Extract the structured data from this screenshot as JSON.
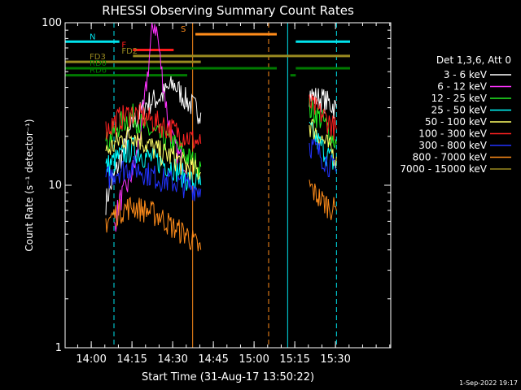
{
  "chart_data": {
    "type": "line",
    "title": "RHESSI Observing Summary Count Rates",
    "xlabel": "Start Time (31-Aug-17 13:50:22)",
    "ylabel": "Count Rate (s⁻¹ detector⁻¹)",
    "yscale": "log",
    "ylim": [
      1,
      100
    ],
    "xlim_min_after_start": [
      0,
      120
    ],
    "x_ticks": [
      "14:00",
      "14:15",
      "14:30",
      "14:45",
      "15:00",
      "15:15",
      "15:30"
    ],
    "y_ticks": [
      "1",
      "10",
      "100"
    ],
    "legend_title": "Det 1,3,6, Att 0",
    "legend_position": "right",
    "timestamp": "1-Sep-2022 19:17",
    "colors": {
      "background": "#000000",
      "axes": "#ffffff",
      "night_boundary": "#00e5ee",
      "saa_boundary": "#ff8c1a"
    },
    "series": [
      {
        "name": "3 - 6 keV",
        "color": "#ffffff",
        "segments": [
          {
            "t": [
              15,
              20,
              25,
              30,
              35,
              40,
              45,
              50
            ],
            "y": [
              8,
              14,
              24,
              32,
              35,
              42,
              33,
              28
            ]
          },
          {
            "t": [
              90,
              92,
              95,
              100
            ],
            "y": [
              37,
              35,
              34,
              30
            ]
          }
        ]
      },
      {
        "name": "6 - 12 keV",
        "color": "#ff33ff",
        "segments": [
          {
            "t": [
              18,
              20,
              23,
              26,
              29,
              31,
              32,
              33,
              34,
              35,
              38,
              40,
              42,
              45
            ],
            "y": [
              5.5,
              8,
              10,
              14,
              30,
              60,
              90,
              100,
              85,
              60,
              25,
              18,
              15,
              14
            ]
          }
        ]
      },
      {
        "name": "12 - 25 keV",
        "color": "#22ee22",
        "segments": [
          {
            "t": [
              15,
              20,
              25,
              30,
              35,
              40,
              45,
              50
            ],
            "y": [
              18,
              24,
              27,
              22,
              20,
              18,
              15,
              13
            ]
          },
          {
            "t": [
              90,
              92,
              95,
              100
            ],
            "y": [
              30,
              28,
              25,
              18
            ]
          }
        ]
      },
      {
        "name": "25 - 50 keV",
        "color": "#00ffff",
        "segments": [
          {
            "t": [
              15,
              20,
              25,
              30,
              35,
              40,
              45,
              50
            ],
            "y": [
              13,
              15,
              17,
              15,
              14,
              13,
              11,
              10
            ]
          },
          {
            "t": [
              90,
              92,
              95,
              100
            ],
            "y": [
              22,
              20,
              17,
              13
            ]
          }
        ]
      },
      {
        "name": "50 - 100 keV",
        "color": "#ffff66",
        "segments": [
          {
            "t": [
              15,
              20,
              25,
              30,
              35,
              40,
              45,
              50
            ],
            "y": [
              16,
              19,
              21,
              18,
              16,
              15,
              13,
              12
            ]
          },
          {
            "t": [
              90,
              92,
              95,
              100
            ],
            "y": [
              24,
              22,
              19,
              15
            ]
          }
        ]
      },
      {
        "name": "100 - 300 keV",
        "color": "#ff2222",
        "segments": [
          {
            "t": [
              15,
              20,
              25,
              30,
              35,
              40,
              45,
              50
            ],
            "y": [
              22,
              26,
              28,
              26,
              24,
              22,
              20,
              18
            ]
          },
          {
            "t": [
              90,
              92,
              95,
              100
            ],
            "y": [
              32,
              30,
              27,
              22
            ]
          }
        ]
      },
      {
        "name": "300 - 800 keV",
        "color": "#2233ff",
        "segments": [
          {
            "t": [
              15,
              20,
              25,
              30,
              35,
              40,
              45,
              50
            ],
            "y": [
              11,
              12.5,
              13,
              12,
              11,
              10.5,
              10,
              9.5
            ]
          },
          {
            "t": [
              90,
              92,
              95,
              100
            ],
            "y": [
              18,
              17,
              15,
              12
            ]
          }
        ]
      },
      {
        "name": "800 - 7000 keV",
        "color": "#ff8c1a",
        "segments": [
          {
            "t": [
              15,
              20,
              25,
              30,
              35,
              40,
              45,
              50
            ],
            "y": [
              6,
              7,
              7.5,
              7,
              6.5,
              5.5,
              5,
              4
            ]
          },
          {
            "t": [
              90,
              92,
              95,
              100
            ],
            "y": [
              10,
              9,
              8,
              7
            ]
          }
        ]
      },
      {
        "name": "7000 - 15000 keV",
        "color": "#9a8a20",
        "segments": []
      }
    ],
    "flag_bars": [
      {
        "label": "N",
        "color": "#00e5ee",
        "y": 76.5,
        "ranges": [
          [
            0,
            20
          ],
          [
            85,
            105
          ]
        ]
      },
      {
        "label": "S",
        "color": "#ff8c1a",
        "y": 85,
        "ranges": [
          [
            48,
            78
          ]
        ]
      },
      {
        "label": "F",
        "color": "#ff1a1a",
        "y": 68,
        "ranges": [
          [
            25,
            40
          ]
        ]
      },
      {
        "label": "FD2",
        "color": "#9a8a20",
        "y": 62.5,
        "ranges": [
          [
            25,
            105
          ]
        ]
      },
      {
        "label": "FD3",
        "color": "#9a8a20",
        "y": 57.5,
        "ranges": [
          [
            0,
            50
          ]
        ]
      },
      {
        "label": "RD0",
        "color": "#007a00",
        "y": 52.5,
        "ranges": [
          [
            0,
            78
          ],
          [
            85,
            105
          ]
        ]
      },
      {
        "label": "RD6",
        "color": "#007a00",
        "y": 47.5,
        "ranges": [
          [
            0,
            45
          ],
          [
            83,
            85
          ]
        ]
      }
    ],
    "vertical_lines": [
      {
        "t": 18,
        "color": "#00e5ee",
        "style": "dashed"
      },
      {
        "t": 47,
        "color": "#ff8c1a",
        "style": "solid"
      },
      {
        "t": 75,
        "color": "#ff8c1a",
        "style": "dashed"
      },
      {
        "t": 82,
        "color": "#00e5ee",
        "style": "solid"
      },
      {
        "t": 100,
        "color": "#00e5ee",
        "style": "dashed"
      }
    ]
  }
}
